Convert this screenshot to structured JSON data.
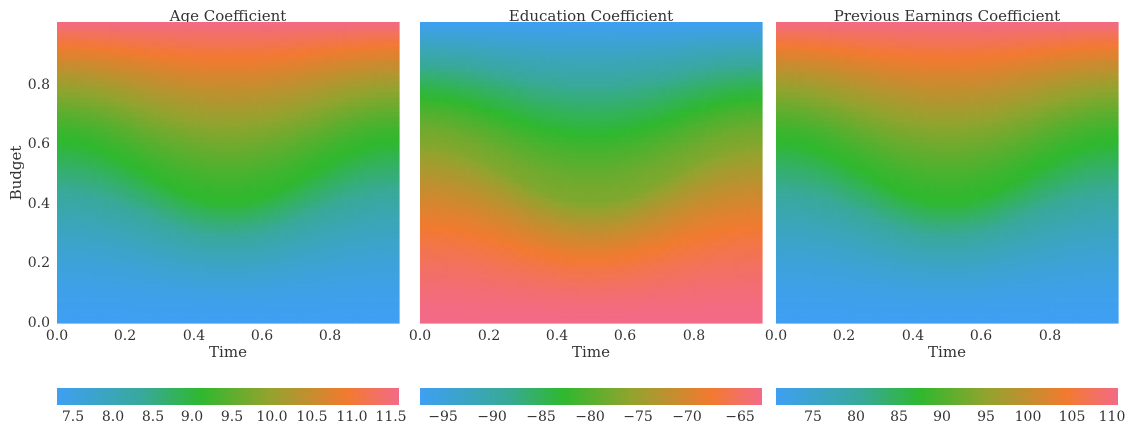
{
  "colormap": [
    "#3f9ff2",
    "#38a99a",
    "#2fb82f",
    "#93a32e",
    "#f27a30",
    "#f26a86"
  ],
  "chart_data": [
    {
      "type": "heatmap",
      "title": "Age Coefficient",
      "xlabel": "Time",
      "ylabel": "Budget",
      "xlim": [
        0,
        1
      ],
      "ylim": [
        0,
        1
      ],
      "xticks": [
        "0.0",
        "0.2",
        "0.4",
        "0.6",
        "0.8"
      ],
      "yticks": [
        "0.0",
        "0.2",
        "0.4",
        "0.6",
        "0.8"
      ],
      "grid": false,
      "field": "value rises with Budget; transition band follows 0.5 + 0.1·cos(2π·Time)",
      "colorbar": {
        "range": [
          7.3,
          11.6
        ],
        "ticks": [
          "7.5",
          "8.0",
          "8.5",
          "9.0",
          "9.5",
          "10.0",
          "10.5",
          "11.0",
          "11.5"
        ]
      }
    },
    {
      "type": "heatmap",
      "title": "Education Coefficient",
      "xlabel": "Time",
      "ylabel": "",
      "xlim": [
        0,
        1
      ],
      "ylim": [
        0,
        1
      ],
      "xticks": [
        "0.0",
        "0.2",
        "0.4",
        "0.6",
        "0.8"
      ],
      "yticks": [],
      "grid": false,
      "field": "value falls with Budget; transition band follows 0.5 + 0.1·cos(2π·Time)",
      "colorbar": {
        "range": [
          -98,
          -63
        ],
        "ticks": [
          "−95",
          "−90",
          "−85",
          "−80",
          "−75",
          "−70",
          "−65"
        ]
      }
    },
    {
      "type": "heatmap",
      "title": "Previous Earnings Coefficient",
      "xlabel": "Time",
      "ylabel": "",
      "xlim": [
        0,
        1
      ],
      "ylim": [
        0,
        1
      ],
      "xticks": [
        "0.0",
        "0.2",
        "0.4",
        "0.6",
        "0.8"
      ],
      "yticks": [],
      "grid": false,
      "field": "value rises with Budget; transition band follows 0.5 + 0.1·cos(2π·Time)",
      "colorbar": {
        "range": [
          70.5,
          110
        ],
        "ticks": [
          "75",
          "80",
          "85",
          "90",
          "95",
          "100",
          "105",
          "110"
        ]
      }
    }
  ]
}
